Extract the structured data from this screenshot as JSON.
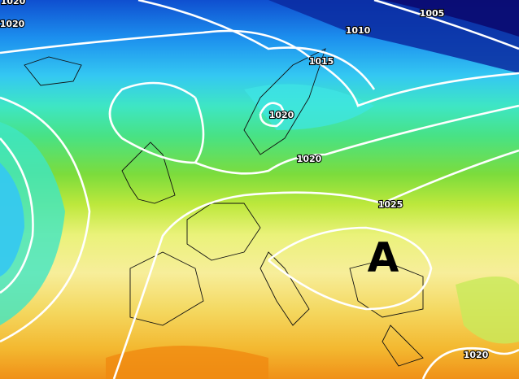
{
  "isobar_labels": [
    "1020",
    "1020",
    "1005",
    "1010",
    "1015",
    "1020",
    "1020",
    "1025",
    "1020"
  ],
  "pressure_center": "A"
}
